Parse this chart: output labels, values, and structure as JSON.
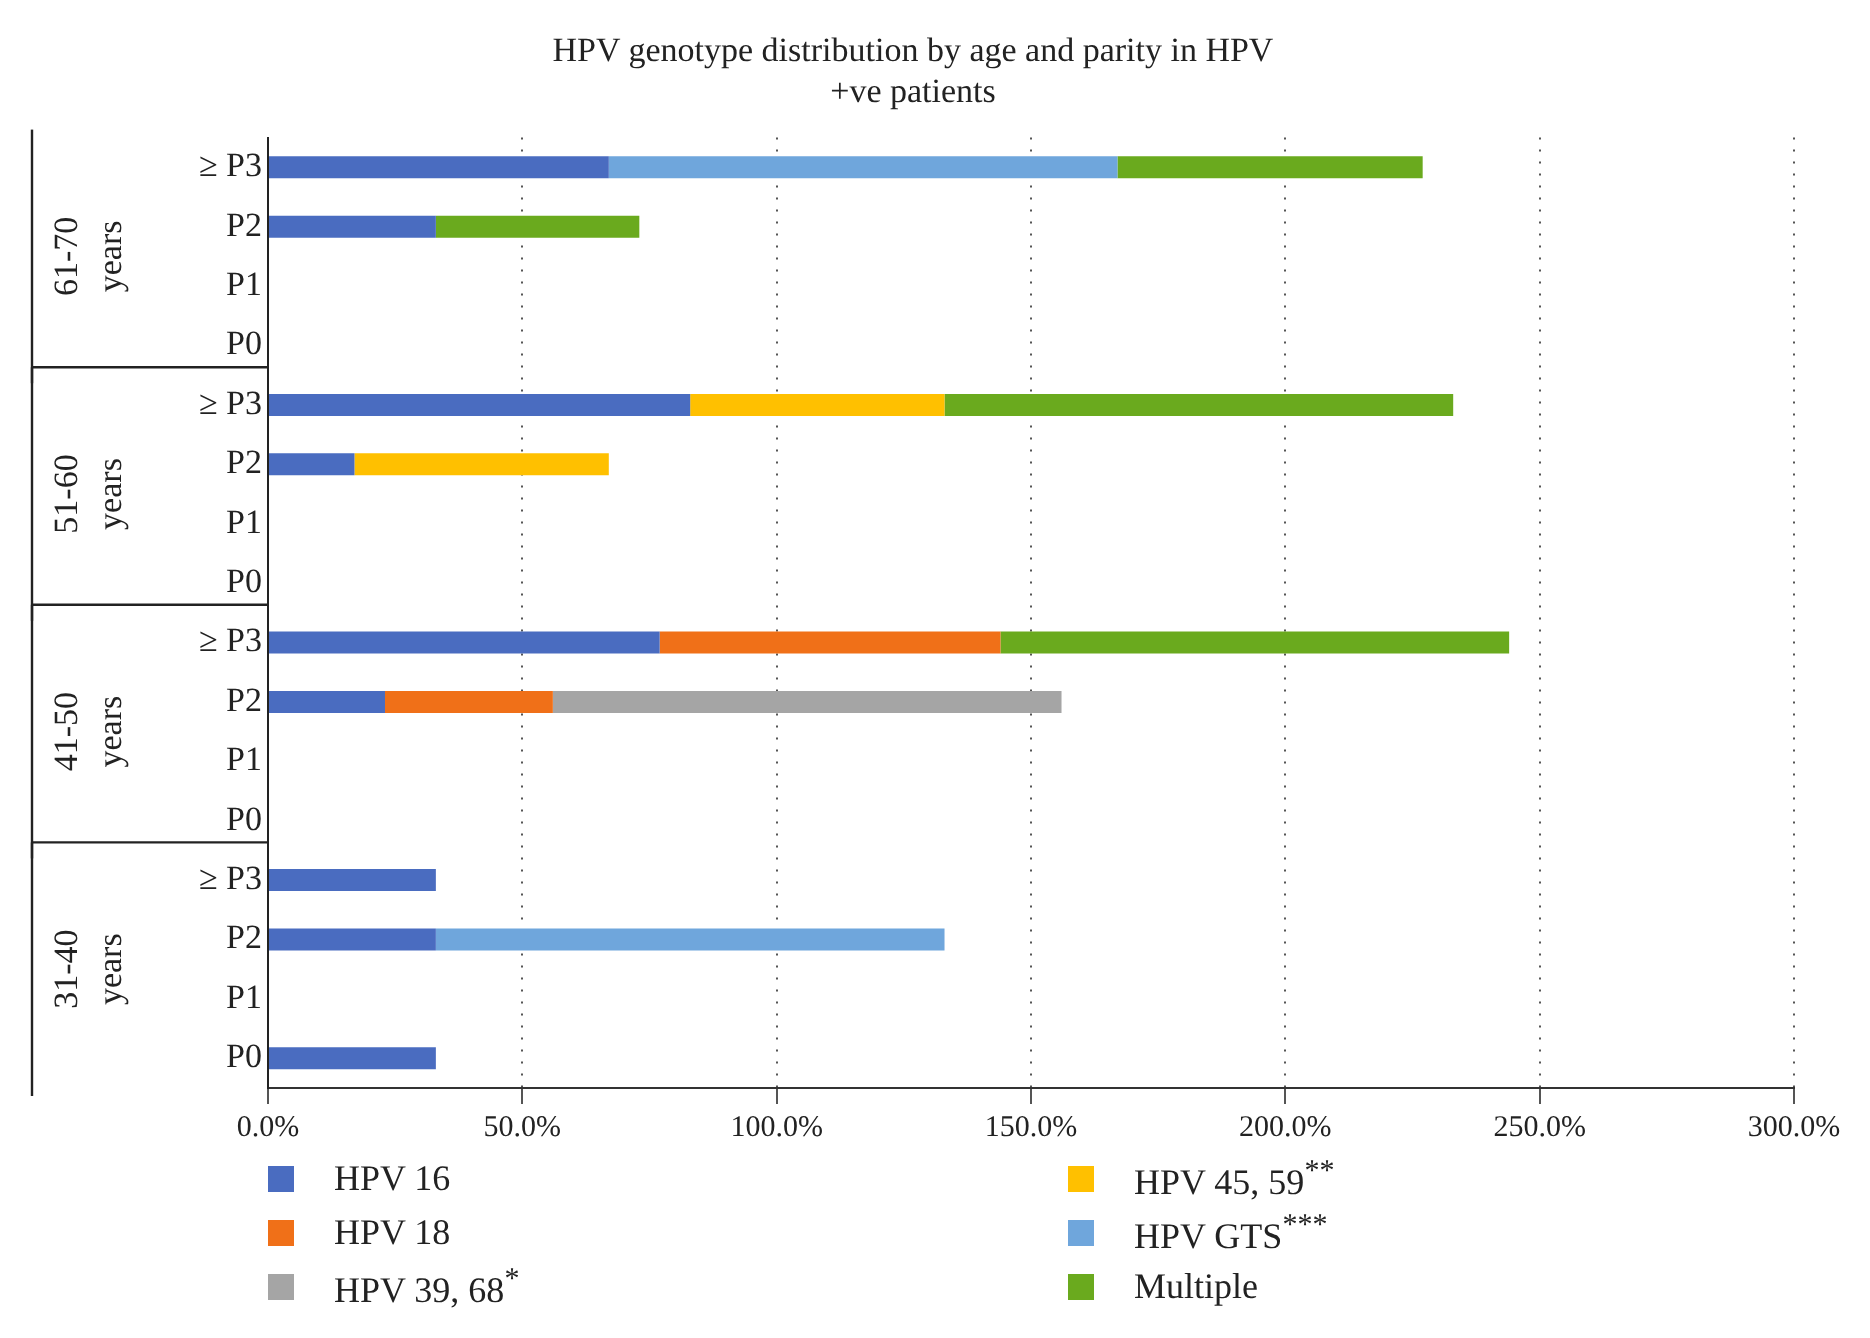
{
  "chart_data": {
    "type": "bar",
    "orientation": "horizontal",
    "stacked": true,
    "title": "HPV genotype distribution by age and parity in HPV +ve patients",
    "categories": [
      "≥ P3",
      "P2",
      "P1",
      "P0",
      "≥ P3",
      "P2",
      "P1",
      "P0",
      "≥ P3",
      "P2",
      "P1",
      "P0",
      "≥ P3",
      "P2",
      "P1",
      "P0"
    ],
    "annotations": [
      "61-70 years",
      "51-60 years",
      "41-50 years",
      "31-40 years"
    ],
    "series": [
      {
        "name": "HPV 16",
        "color": "#4a6cc0",
        "values": [
          67,
          33,
          null,
          null,
          83,
          17,
          null,
          null,
          77,
          23,
          null,
          null,
          33,
          33,
          null,
          33
        ]
      },
      {
        "name": "HPV 18",
        "color": "#f07018",
        "values": [
          null,
          null,
          null,
          null,
          null,
          null,
          null,
          null,
          67,
          33,
          null,
          null,
          null,
          null,
          null,
          null
        ]
      },
      {
        "name": "HPV 39, 68$^{*}$",
        "color": "#a5a5a5",
        "values": [
          null,
          null,
          null,
          null,
          null,
          null,
          null,
          null,
          null,
          100,
          null,
          null,
          null,
          null,
          null,
          null
        ]
      },
      {
        "name": "HPV 45, 59$^{**}$",
        "color": "#ffc000",
        "values": [
          null,
          null,
          null,
          null,
          50,
          50,
          null,
          null,
          null,
          null,
          null,
          null,
          null,
          null,
          null,
          null
        ]
      },
      {
        "name": "HPV GTS$^{***}$",
        "color": "#6fa6dc",
        "values": [
          100,
          null,
          null,
          null,
          null,
          null,
          null,
          null,
          null,
          null,
          null,
          null,
          null,
          100,
          null,
          null
        ]
      },
      {
        "name": "Multiple",
        "color": "#6aaa1e",
        "values": [
          60,
          40,
          null,
          null,
          100,
          null,
          null,
          null,
          100,
          null,
          null,
          null,
          null,
          null,
          null,
          null
        ]
      }
    ],
    "xlim": [
      0,
      300
    ],
    "xticks": [
      {
        "value": 0,
        "label": "0.0%"
      },
      {
        "value": 50,
        "label": "50.0%"
      },
      {
        "value": 100,
        "label": "100.0%"
      },
      {
        "value": 150,
        "label": "150.0%"
      },
      {
        "value": 200,
        "label": "200.0%"
      },
      {
        "value": 250,
        "label": "250.0%"
      },
      {
        "value": 300,
        "label": "300.0%"
      }
    ],
    "grid": "x",
    "legend": "bottom"
  }
}
